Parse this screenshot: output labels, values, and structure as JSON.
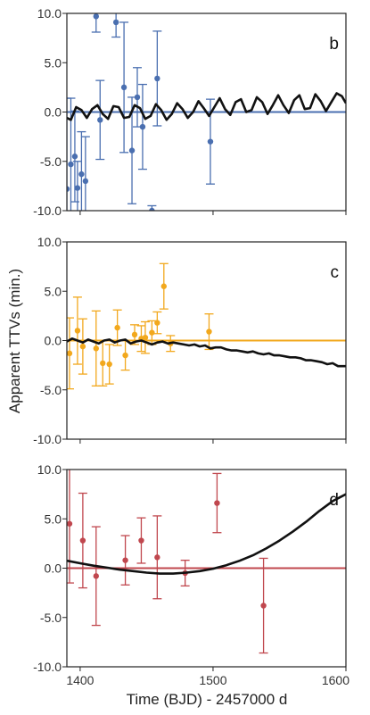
{
  "chart_data": {
    "type": "scatter",
    "xlabel": "Time (BJD) - 2457000 d",
    "ylabel": "Apparent TTVs (min.)",
    "xlim": [
      1390,
      1600
    ],
    "x_ticks": [
      1400,
      1500,
      1600
    ],
    "x_tick_labels": [
      "1400",
      "1500",
      "1600"
    ],
    "panels": [
      {
        "label": "b",
        "color": "#4a6fb0",
        "ylim": [
          -10,
          10
        ],
        "y_ticks": [
          -10,
          -5,
          0,
          5,
          10
        ],
        "y_tick_labels": [
          "-10.0",
          "-5.0",
          "0.0",
          "5.0",
          "10.0"
        ],
        "points": [
          {
            "x": 1390,
            "y": -7.8,
            "err": 9.2
          },
          {
            "x": 1393,
            "y": -5.3,
            "err": 6.7
          },
          {
            "x": 1396,
            "y": -4.5,
            "err": 4.6
          },
          {
            "x": 1398,
            "y": -7.7,
            "err": 2.7
          },
          {
            "x": 1401,
            "y": -6.3,
            "err": 4.3
          },
          {
            "x": 1404,
            "y": -7.0,
            "err": 4.5
          },
          {
            "x": 1412,
            "y": 9.7,
            "err": 1.6
          },
          {
            "x": 1415,
            "y": -0.8,
            "err": 4.0
          },
          {
            "x": 1427,
            "y": 9.1,
            "err": 1.5
          },
          {
            "x": 1433,
            "y": 2.5,
            "err": 6.6
          },
          {
            "x": 1439,
            "y": -3.9,
            "err": 5.4
          },
          {
            "x": 1443,
            "y": 1.5,
            "err": 3.0
          },
          {
            "x": 1447,
            "y": -1.5,
            "err": 4.3
          },
          {
            "x": 1454,
            "y": -10.0,
            "err": 0.5
          },
          {
            "x": 1458,
            "y": 3.4,
            "err": 4.8
          },
          {
            "x": 1498,
            "y": -3.0,
            "err": 4.3
          }
        ],
        "model": {
          "x": [
            1390,
            1393,
            1397,
            1401,
            1405,
            1409,
            1413,
            1417,
            1421,
            1425,
            1429,
            1433,
            1437,
            1441,
            1445,
            1449,
            1453,
            1457,
            1461,
            1465,
            1469,
            1473,
            1477,
            1481,
            1485,
            1489,
            1493,
            1497,
            1501,
            1505,
            1509,
            1513,
            1517,
            1521,
            1525,
            1529,
            1533,
            1537,
            1541,
            1545,
            1549,
            1553,
            1557,
            1561,
            1565,
            1569,
            1573,
            1577,
            1581,
            1585,
            1589,
            1593,
            1597,
            1600
          ],
          "y": [
            -0.6,
            -0.8,
            0.5,
            0.2,
            -0.6,
            0.3,
            0.7,
            -0.2,
            -0.7,
            0.6,
            0.5,
            -0.6,
            -0.5,
            0.7,
            0.4,
            -0.7,
            -0.4,
            0.8,
            0.2,
            -0.8,
            -0.2,
            0.9,
            0.3,
            -0.6,
            0.0,
            1.1,
            0.4,
            -0.4,
            0.5,
            1.4,
            0.3,
            -0.3,
            1.0,
            1.3,
            0.0,
            0.2,
            1.5,
            1.0,
            -0.2,
            0.7,
            1.7,
            0.7,
            -0.1,
            1.2,
            1.7,
            0.3,
            0.4,
            1.8,
            1.1,
            0.1,
            1.0,
            1.9,
            1.6,
            0.9
          ]
        }
      },
      {
        "label": "c",
        "color": "#f2a81d",
        "ylim": [
          -10,
          10
        ],
        "y_ticks": [
          -10,
          -5,
          0,
          5,
          10
        ],
        "y_tick_labels": [
          "-10.0",
          "-5.0",
          "0.0",
          "5.0",
          "10.0"
        ],
        "points": [
          {
            "x": 1392,
            "y": -1.3,
            "err": 3.6
          },
          {
            "x": 1398,
            "y": 1.0,
            "err": 3.4
          },
          {
            "x": 1402,
            "y": -0.6,
            "err": 2.8
          },
          {
            "x": 1412,
            "y": -0.8,
            "err": 3.8
          },
          {
            "x": 1417,
            "y": -2.3,
            "err": 2.3
          },
          {
            "x": 1422,
            "y": -2.4,
            "err": 2.0
          },
          {
            "x": 1428,
            "y": 1.3,
            "err": 1.8
          },
          {
            "x": 1434,
            "y": -1.5,
            "err": 1.5
          },
          {
            "x": 1441,
            "y": 0.6,
            "err": 1.0
          },
          {
            "x": 1446,
            "y": 0.2,
            "err": 1.3
          },
          {
            "x": 1449,
            "y": 0.3,
            "err": 1.6
          },
          {
            "x": 1454,
            "y": 0.8,
            "err": 1.2
          },
          {
            "x": 1458,
            "y": 1.8,
            "err": 1.1
          },
          {
            "x": 1463,
            "y": 5.5,
            "err": 2.3
          },
          {
            "x": 1468,
            "y": -0.3,
            "err": 0.8
          },
          {
            "x": 1497,
            "y": 0.9,
            "err": 1.8
          }
        ],
        "model": {
          "x": [
            1390,
            1394,
            1398,
            1402,
            1406,
            1410,
            1414,
            1418,
            1422,
            1426,
            1430,
            1434,
            1438,
            1442,
            1446,
            1450,
            1454,
            1458,
            1462,
            1466,
            1470,
            1474,
            1478,
            1482,
            1486,
            1490,
            1494,
            1498,
            1502,
            1506,
            1510,
            1514,
            1518,
            1522,
            1526,
            1530,
            1534,
            1538,
            1542,
            1546,
            1550,
            1554,
            1558,
            1562,
            1566,
            1570,
            1574,
            1578,
            1582,
            1586,
            1590,
            1594,
            1600
          ],
          "y": [
            -0.1,
            0.2,
            0.0,
            -0.2,
            0.1,
            -0.1,
            -0.3,
            0.0,
            0.1,
            -0.2,
            0.0,
            0.1,
            -0.3,
            -0.1,
            0.0,
            -0.2,
            -0.4,
            -0.2,
            -0.1,
            -0.3,
            -0.2,
            -0.3,
            -0.4,
            -0.5,
            -0.4,
            -0.6,
            -0.5,
            -0.8,
            -0.7,
            -0.7,
            -0.9,
            -1.0,
            -1.0,
            -1.1,
            -1.2,
            -1.1,
            -1.3,
            -1.4,
            -1.3,
            -1.5,
            -1.5,
            -1.6,
            -1.7,
            -1.7,
            -1.8,
            -2.0,
            -2.0,
            -2.1,
            -2.2,
            -2.4,
            -2.3,
            -2.6,
            -2.6
          ]
        }
      },
      {
        "label": "d",
        "color": "#c0474e",
        "ylim": [
          -10,
          10
        ],
        "y_ticks": [
          -10,
          -5,
          0,
          5,
          10
        ],
        "y_tick_labels": [
          "-10.0",
          "-5.0",
          "0.0",
          "5.0",
          "10.0"
        ],
        "points": [
          {
            "x": 1392,
            "y": 4.5,
            "err": 6.0
          },
          {
            "x": 1402,
            "y": 2.8,
            "err": 4.8
          },
          {
            "x": 1412,
            "y": -0.8,
            "err": 5.0
          },
          {
            "x": 1434,
            "y": 0.8,
            "err": 2.5
          },
          {
            "x": 1446,
            "y": 2.8,
            "err": 2.3
          },
          {
            "x": 1458,
            "y": 1.1,
            "err": 4.2
          },
          {
            "x": 1479,
            "y": -0.5,
            "err": 1.3
          },
          {
            "x": 1503,
            "y": 6.6,
            "err": 3.0
          },
          {
            "x": 1538,
            "y": -3.8,
            "err": 4.8
          }
        ],
        "model": {
          "x": [
            1390,
            1400,
            1410,
            1420,
            1430,
            1440,
            1450,
            1460,
            1470,
            1480,
            1490,
            1500,
            1510,
            1520,
            1530,
            1540,
            1550,
            1560,
            1570,
            1580,
            1590,
            1600
          ],
          "y": [
            0.75,
            0.5,
            0.25,
            0.05,
            -0.15,
            -0.3,
            -0.45,
            -0.55,
            -0.55,
            -0.45,
            -0.3,
            -0.05,
            0.3,
            0.75,
            1.3,
            2.0,
            2.8,
            3.7,
            4.7,
            5.8,
            6.8,
            7.5
          ]
        }
      }
    ]
  }
}
